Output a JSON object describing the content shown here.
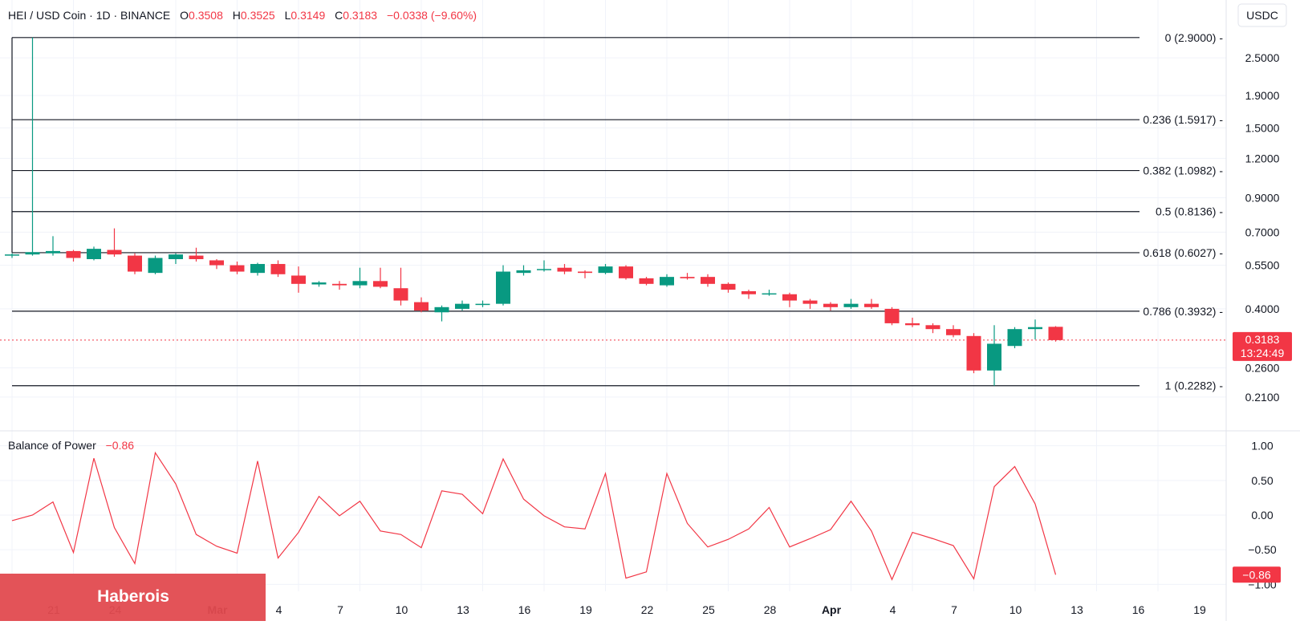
{
  "header": {
    "symbol": "HEI / USD Coin · 1D · BINANCE",
    "o_label": "O",
    "o_value": "0.3508",
    "h_label": "H",
    "h_value": "0.3525",
    "l_label": "L",
    "l_value": "0.3149",
    "c_label": "C",
    "c_value": "0.3183",
    "change": "−0.0338 (−9.60%)"
  },
  "currency_button": "USDC",
  "price_label": {
    "value": "0.3183",
    "countdown": "13:24:49"
  },
  "indicator": {
    "name": "Balance of Power",
    "value": "−0.86",
    "axis_label": "−0.86"
  },
  "watermark": "Haberois",
  "colors": {
    "up": "#089981",
    "down": "#f23645",
    "indicator": "#f23645",
    "fib": "#131722"
  },
  "chart_data": [
    {
      "type": "candlestick",
      "title": "HEI / USD Coin · 1D · BINANCE",
      "y_scale": "log",
      "ylim": [
        0.19,
        3.2
      ],
      "y_ticks": [
        "2.5000",
        "1.9000",
        "1.5000",
        "1.2000",
        "0.9000",
        "0.7000",
        "0.5500",
        "0.4000",
        "0.2600",
        "0.2100"
      ],
      "x_ticks": [
        {
          "day": 0,
          "label": "21"
        },
        {
          "day": 3,
          "label": "24"
        },
        {
          "day": 8,
          "label": "Mar"
        },
        {
          "day": 11,
          "label": "4"
        },
        {
          "day": 14,
          "label": "7"
        },
        {
          "day": 17,
          "label": "10"
        },
        {
          "day": 20,
          "label": "13"
        },
        {
          "day": 23,
          "label": "16"
        },
        {
          "day": 26,
          "label": "19"
        },
        {
          "day": 29,
          "label": "22"
        },
        {
          "day": 32,
          "label": "25"
        },
        {
          "day": 35,
          "label": "28"
        },
        {
          "day": 38,
          "label": "Apr"
        },
        {
          "day": 41,
          "label": "4"
        },
        {
          "day": 44,
          "label": "7"
        },
        {
          "day": 47,
          "label": "10"
        },
        {
          "day": 50,
          "label": "13"
        },
        {
          "day": 53,
          "label": "16"
        },
        {
          "day": 56,
          "label": "19"
        }
      ],
      "fib_levels": [
        {
          "label": "0 (2.9000)",
          "value": 2.9
        },
        {
          "label": "0.236 (1.5917)",
          "value": 1.5917
        },
        {
          "label": "0.382 (1.0982)",
          "value": 1.0982
        },
        {
          "label": "0.5 (0.8136)",
          "value": 0.8136
        },
        {
          "label": "0.618 (0.6027)",
          "value": 0.6027
        },
        {
          "label": "0.786 (0.3932)",
          "value": 0.3932
        },
        {
          "label": "1 (0.2282)",
          "value": 0.2282
        }
      ],
      "last_price": 0.3183,
      "candles": [
        {
          "o": 0.59,
          "h": 0.6,
          "l": 0.58,
          "c": 0.595
        },
        {
          "o": 0.595,
          "h": 2.9,
          "l": 0.59,
          "c": 0.605
        },
        {
          "o": 0.6,
          "h": 0.68,
          "l": 0.59,
          "c": 0.61
        },
        {
          "o": 0.61,
          "h": 0.615,
          "l": 0.565,
          "c": 0.58
        },
        {
          "o": 0.575,
          "h": 0.63,
          "l": 0.57,
          "c": 0.62
        },
        {
          "o": 0.615,
          "h": 0.72,
          "l": 0.585,
          "c": 0.595
        },
        {
          "o": 0.59,
          "h": 0.6,
          "l": 0.515,
          "c": 0.525
        },
        {
          "o": 0.52,
          "h": 0.59,
          "l": 0.515,
          "c": 0.58
        },
        {
          "o": 0.575,
          "h": 0.6,
          "l": 0.555,
          "c": 0.595
        },
        {
          "o": 0.59,
          "h": 0.625,
          "l": 0.565,
          "c": 0.575
        },
        {
          "o": 0.57,
          "h": 0.575,
          "l": 0.535,
          "c": 0.55
        },
        {
          "o": 0.55,
          "h": 0.565,
          "l": 0.515,
          "c": 0.525
        },
        {
          "o": 0.52,
          "h": 0.56,
          "l": 0.51,
          "c": 0.555
        },
        {
          "o": 0.555,
          "h": 0.57,
          "l": 0.505,
          "c": 0.515
        },
        {
          "o": 0.51,
          "h": 0.545,
          "l": 0.45,
          "c": 0.48
        },
        {
          "o": 0.478,
          "h": 0.49,
          "l": 0.47,
          "c": 0.485
        },
        {
          "o": 0.48,
          "h": 0.49,
          "l": 0.46,
          "c": 0.475
        },
        {
          "o": 0.475,
          "h": 0.54,
          "l": 0.465,
          "c": 0.49
        },
        {
          "o": 0.49,
          "h": 0.54,
          "l": 0.465,
          "c": 0.47
        },
        {
          "o": 0.465,
          "h": 0.54,
          "l": 0.41,
          "c": 0.425
        },
        {
          "o": 0.42,
          "h": 0.435,
          "l": 0.39,
          "c": 0.395
        },
        {
          "o": 0.39,
          "h": 0.41,
          "l": 0.365,
          "c": 0.405
        },
        {
          "o": 0.4,
          "h": 0.425,
          "l": 0.395,
          "c": 0.415
        },
        {
          "o": 0.415,
          "h": 0.425,
          "l": 0.405,
          "c": 0.415
        },
        {
          "o": 0.415,
          "h": 0.55,
          "l": 0.41,
          "c": 0.525
        },
        {
          "o": 0.52,
          "h": 0.55,
          "l": 0.51,
          "c": 0.53
        },
        {
          "o": 0.535,
          "h": 0.57,
          "l": 0.525,
          "c": 0.535
        },
        {
          "o": 0.54,
          "h": 0.555,
          "l": 0.515,
          "c": 0.525
        },
        {
          "o": 0.525,
          "h": 0.53,
          "l": 0.5,
          "c": 0.52
        },
        {
          "o": 0.52,
          "h": 0.555,
          "l": 0.515,
          "c": 0.545
        },
        {
          "o": 0.545,
          "h": 0.55,
          "l": 0.495,
          "c": 0.5
        },
        {
          "o": 0.5,
          "h": 0.505,
          "l": 0.475,
          "c": 0.48
        },
        {
          "o": 0.475,
          "h": 0.515,
          "l": 0.47,
          "c": 0.505
        },
        {
          "o": 0.505,
          "h": 0.52,
          "l": 0.495,
          "c": 0.5
        },
        {
          "o": 0.505,
          "h": 0.515,
          "l": 0.47,
          "c": 0.48
        },
        {
          "o": 0.48,
          "h": 0.485,
          "l": 0.45,
          "c": 0.46
        },
        {
          "o": 0.455,
          "h": 0.46,
          "l": 0.43,
          "c": 0.445
        },
        {
          "o": 0.445,
          "h": 0.46,
          "l": 0.44,
          "c": 0.448
        },
        {
          "o": 0.445,
          "h": 0.45,
          "l": 0.405,
          "c": 0.425
        },
        {
          "o": 0.425,
          "h": 0.43,
          "l": 0.4,
          "c": 0.415
        },
        {
          "o": 0.415,
          "h": 0.42,
          "l": 0.395,
          "c": 0.405
        },
        {
          "o": 0.405,
          "h": 0.43,
          "l": 0.4,
          "c": 0.415
        },
        {
          "o": 0.415,
          "h": 0.43,
          "l": 0.4,
          "c": 0.405
        },
        {
          "o": 0.4,
          "h": 0.405,
          "l": 0.355,
          "c": 0.36
        },
        {
          "o": 0.36,
          "h": 0.375,
          "l": 0.35,
          "c": 0.355
        },
        {
          "o": 0.355,
          "h": 0.36,
          "l": 0.335,
          "c": 0.345
        },
        {
          "o": 0.345,
          "h": 0.355,
          "l": 0.325,
          "c": 0.33
        },
        {
          "o": 0.328,
          "h": 0.335,
          "l": 0.25,
          "c": 0.255
        },
        {
          "o": 0.255,
          "h": 0.355,
          "l": 0.228,
          "c": 0.31
        },
        {
          "o": 0.305,
          "h": 0.35,
          "l": 0.3,
          "c": 0.345
        },
        {
          "o": 0.345,
          "h": 0.37,
          "l": 0.32,
          "c": 0.35
        },
        {
          "o": 0.3508,
          "h": 0.3525,
          "l": 0.3149,
          "c": 0.3183
        }
      ]
    },
    {
      "type": "line",
      "title": "Balance of Power",
      "ylim": [
        -1.1,
        1.1
      ],
      "y_ticks": [
        "1.00",
        "0.50",
        "0.00",
        "−0.50",
        "−1.00"
      ],
      "values": [
        -0.08,
        0.0,
        0.19,
        -0.54,
        0.82,
        -0.18,
        -0.7,
        0.9,
        0.45,
        -0.28,
        -0.45,
        -0.55,
        0.78,
        -0.62,
        -0.25,
        0.27,
        -0.01,
        0.2,
        -0.23,
        -0.28,
        -0.47,
        0.35,
        0.3,
        0.02,
        0.81,
        0.23,
        -0.01,
        -0.17,
        -0.2,
        0.6,
        -0.91,
        -0.82,
        0.6,
        -0.12,
        -0.46,
        -0.35,
        -0.2,
        0.11,
        -0.46,
        -0.34,
        -0.21,
        0.2,
        -0.23,
        -0.93,
        -0.25,
        -0.34,
        -0.44,
        -0.92,
        0.41,
        0.7,
        0.16,
        -0.86
      ]
    }
  ]
}
